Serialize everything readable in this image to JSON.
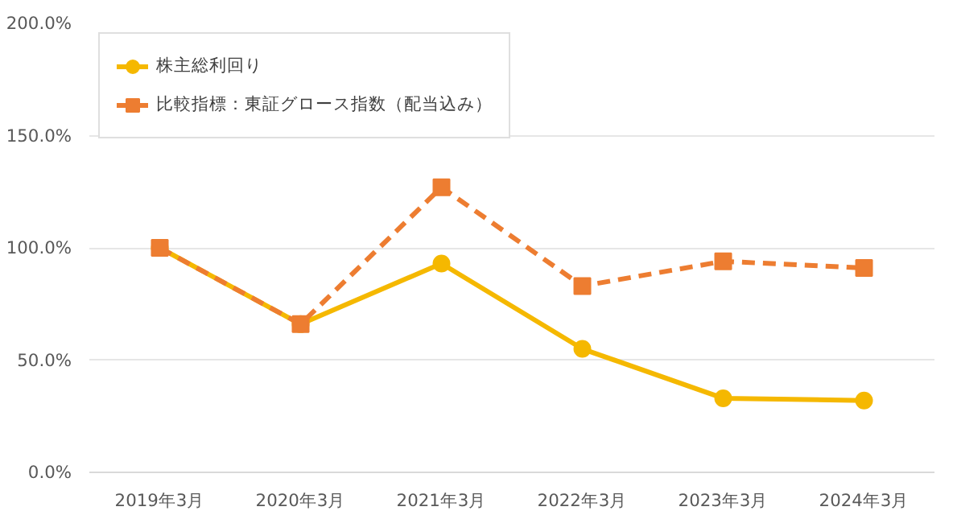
{
  "chart_data": {
    "type": "line",
    "categories": [
      "2019年3月",
      "2020年3月",
      "2021年3月",
      "2022年3月",
      "2023年3月",
      "2024年3月"
    ],
    "series": [
      {
        "name": "株主総利回り",
        "color": "#f5b800",
        "marker": "circle",
        "line_style": "solid",
        "values": [
          100,
          66,
          93,
          55,
          33,
          32
        ]
      },
      {
        "name": "比較指標：東証グロース指数（配当込み）",
        "color": "#ed7d31",
        "marker": "square",
        "line_style": "dashed",
        "values": [
          100,
          66,
          127,
          83,
          94,
          91
        ]
      }
    ],
    "ylim": [
      0,
      200
    ],
    "yticks": [
      {
        "value": 0,
        "label": "0.0%"
      },
      {
        "value": 50,
        "label": "50.0%"
      },
      {
        "value": 100,
        "label": "100.0%"
      },
      {
        "value": 150,
        "label": "150.0%"
      },
      {
        "value": 200,
        "label": "200.0%"
      }
    ],
    "grid": "y",
    "legend": "top left"
  }
}
